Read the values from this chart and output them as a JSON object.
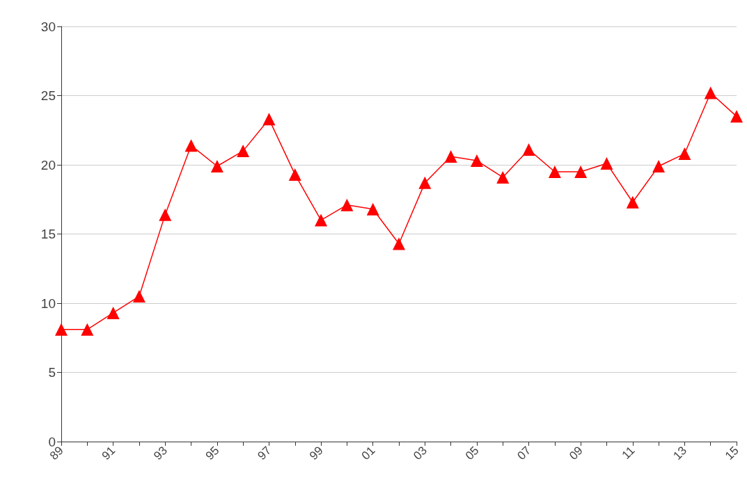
{
  "chart_data": {
    "type": "line",
    "categories": [
      "89",
      null,
      "91",
      null,
      "93",
      null,
      "95",
      null,
      "97",
      null,
      "99",
      null,
      "01",
      null,
      "03",
      null,
      "05",
      null,
      "07",
      null,
      "09",
      null,
      "11",
      null,
      "13",
      null,
      "15"
    ],
    "series": [
      {
        "color": "#ff0000",
        "values": [
          8.1,
          8.1,
          9.3,
          10.5,
          16.4,
          21.4,
          19.9,
          21.0,
          23.3,
          19.3,
          16.0,
          17.1,
          16.8,
          14.3,
          18.7,
          20.6,
          20.3,
          19.1,
          21.1,
          19.5,
          19.5,
          20.1,
          17.3,
          19.9,
          20.8,
          25.2,
          23.5
        ]
      }
    ],
    "ylim": [
      0,
      30
    ],
    "yticks": [
      0,
      5,
      10,
      15,
      20,
      25,
      30
    ],
    "grid": "y",
    "marker": "triangle",
    "line_style": "solid"
  }
}
